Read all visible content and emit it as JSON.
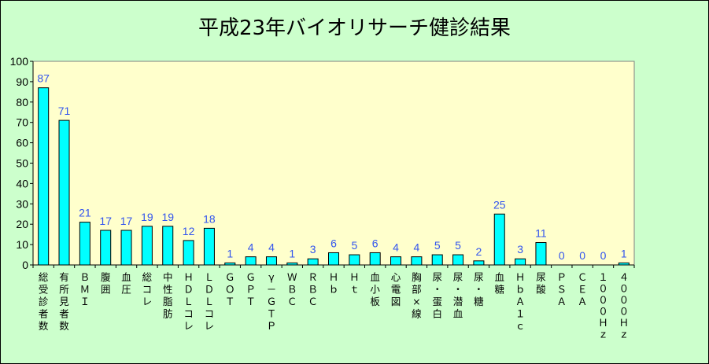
{
  "chart_data": {
    "type": "bar",
    "title": "平成23年バイオリサーチ健診結果",
    "xlabel": "",
    "ylabel": "",
    "ylim": [
      0,
      100
    ],
    "yticks": [
      0,
      10,
      20,
      30,
      40,
      50,
      60,
      70,
      80,
      90,
      100
    ],
    "grid": false,
    "legend": "none",
    "colors": {
      "background": "#ccffcc",
      "plot_background": "#ffffcc",
      "bar_fill": "#00ffff",
      "bar_stroke": "#000000",
      "data_label": "#3355ee"
    },
    "categories": [
      "総受診者数",
      "有所見者数",
      "ＢＭＩ",
      "腹囲",
      "血圧",
      "総コレ",
      "中性脂肪",
      "ＨＤＬコレ",
      "ＬＤＬコレ",
      "ＧＯＴ",
      "ＧＰＴ",
      "γ－ＧＴＰ",
      "ＷＢＣ",
      "ＲＢＣ",
      "Ｈｂ",
      "Ｈｔ",
      "血小板",
      "心電図",
      "胸部×線",
      "尿・蛋白",
      "尿・潜血",
      "尿・糖",
      "血糖",
      "ＨｂＡ１ｃ",
      "尿酸",
      "ＰＳＡ",
      "ＣＥＡ",
      "１０００Ｈｚ",
      "４０００Ｈｚ"
    ],
    "values": [
      87,
      71,
      21,
      17,
      17,
      19,
      19,
      12,
      18,
      1,
      4,
      4,
      1,
      3,
      6,
      5,
      6,
      4,
      4,
      5,
      5,
      2,
      25,
      3,
      11,
      0,
      0,
      0,
      1
    ]
  }
}
